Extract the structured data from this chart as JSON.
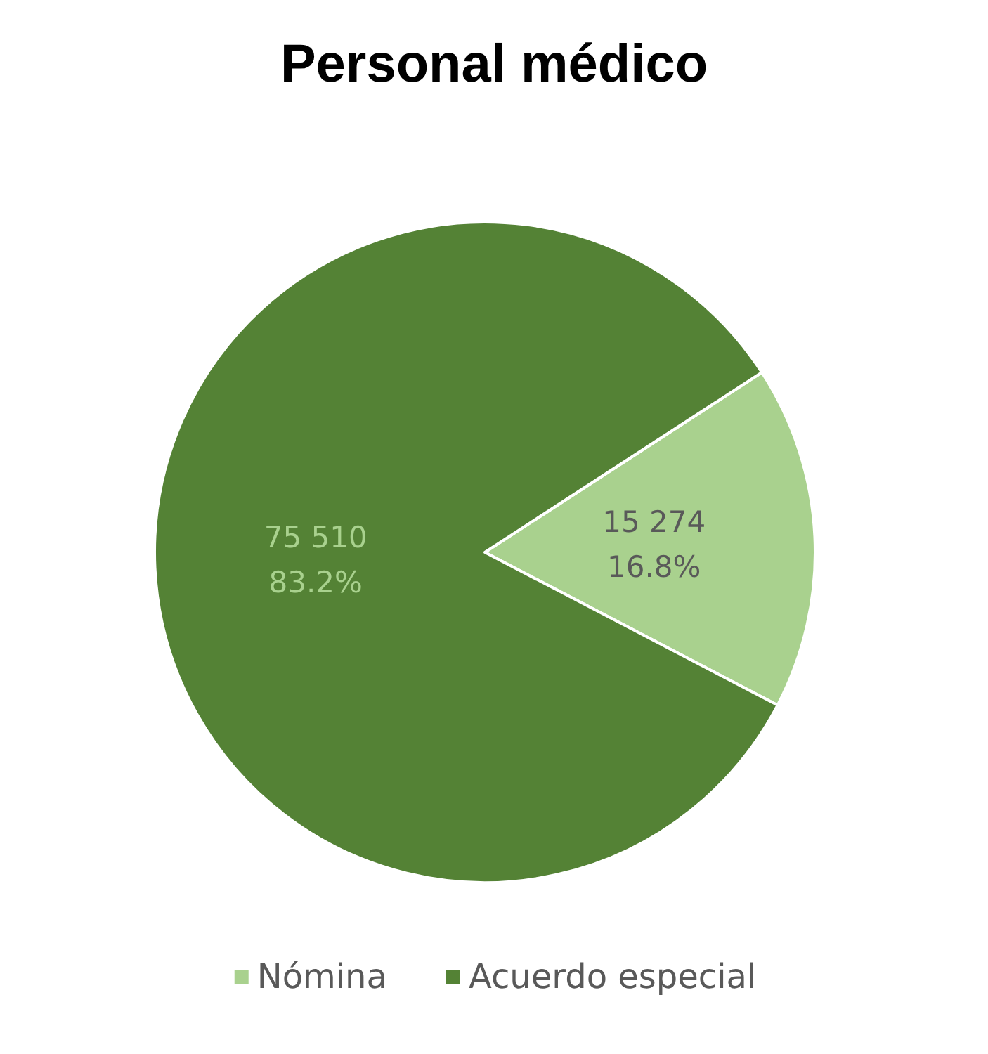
{
  "chart_data": {
    "type": "pie",
    "title": "Personal médico",
    "categories": [
      "Nómina",
      "Acuerdo especial"
    ],
    "values": [
      15274,
      75510
    ],
    "colors": [
      "#a9d18e",
      "#548235"
    ],
    "value_labels": [
      "15 274\n16.8%",
      "75 510\n83.2%"
    ],
    "legend": "bottom"
  }
}
